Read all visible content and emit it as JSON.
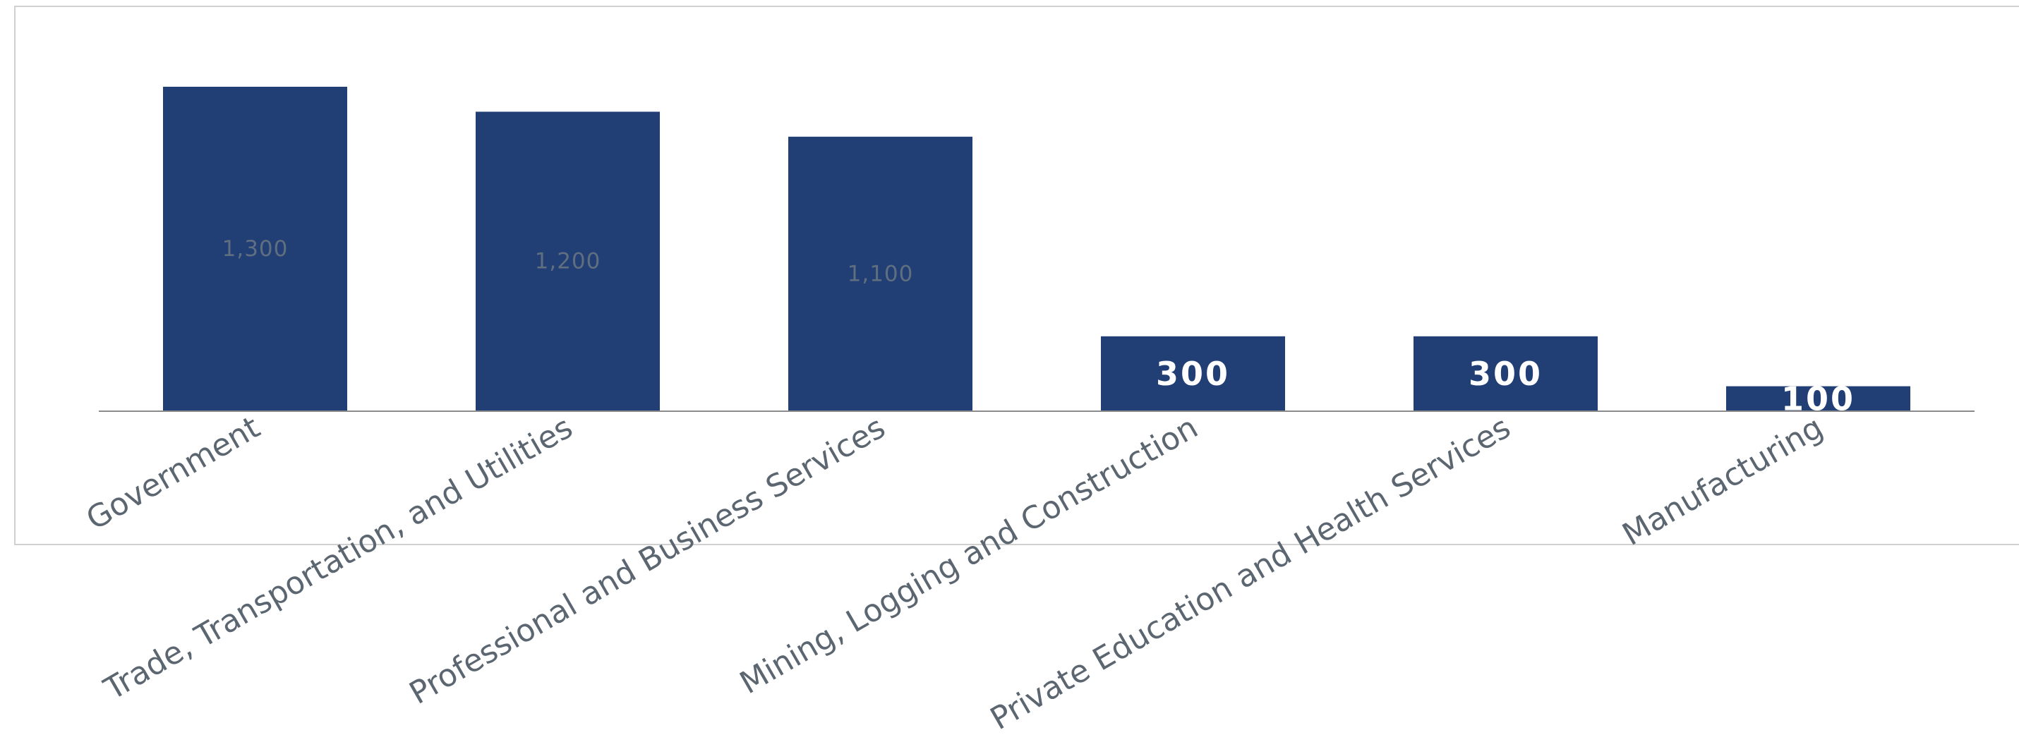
{
  "chart_data": {
    "type": "bar",
    "title": "",
    "xlabel": "",
    "ylabel": "",
    "categories": [
      "Government",
      "Trade, Transportation, and Utilities",
      "Professional and Business Services",
      "Mining, Logging and Construction",
      "Private Education and Health Services",
      "Manufacturing"
    ],
    "values": [
      1300,
      1200,
      1100,
      300,
      300,
      100
    ],
    "data_labels": [
      "1,300",
      "1,200",
      "1,100",
      "300",
      "300",
      "100"
    ],
    "ylim": [
      0,
      1400
    ],
    "grid": false,
    "legend": "none",
    "colors": {
      "bar": "#213e75",
      "label_inside_large": "#5f6f80",
      "label_inside_small": "#ffffff",
      "axis_text": "#5b6670",
      "baseline": "#8b8b8b",
      "frame": "#d0d0d0"
    }
  }
}
